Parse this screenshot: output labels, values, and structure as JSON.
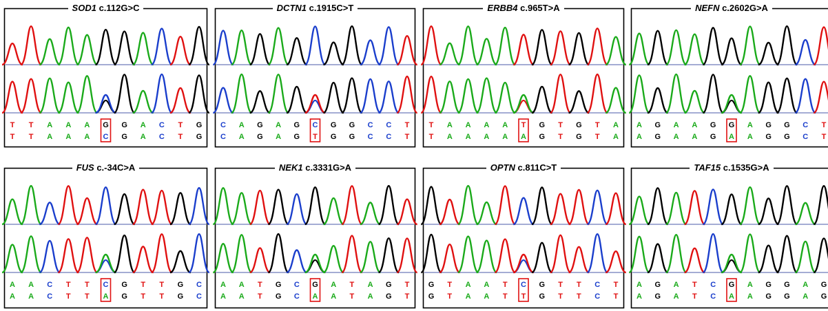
{
  "colors": {
    "A": "#1aaa1a",
    "C": "#1a3ecc",
    "G": "#000000",
    "T": "#e01010",
    "box": "#e01010",
    "frame": "#000000"
  },
  "panels": [
    {
      "gene": "SOD1",
      "variant": "c.112G>C",
      "wt": [
        "T",
        "T",
        "A",
        "A",
        "A",
        "G",
        "G",
        "A",
        "C",
        "T",
        "G"
      ],
      "mut": [
        "T",
        "T",
        "A",
        "A",
        "A",
        "C",
        "G",
        "A",
        "C",
        "T",
        "G"
      ],
      "site": 5
    },
    {
      "gene": "DCTN1",
      "variant": "c.1915C>T",
      "wt": [
        "C",
        "A",
        "G",
        "A",
        "G",
        "C",
        "G",
        "G",
        "C",
        "C",
        "T"
      ],
      "mut": [
        "C",
        "A",
        "G",
        "A",
        "G",
        "T",
        "G",
        "G",
        "C",
        "C",
        "T"
      ],
      "site": 5
    },
    {
      "gene": "ERBB4",
      "variant": "c.965T>A",
      "wt": [
        "T",
        "A",
        "A",
        "A",
        "A",
        "T",
        "G",
        "T",
        "G",
        "T",
        "A"
      ],
      "mut": [
        "T",
        "A",
        "A",
        "A",
        "A",
        "A",
        "G",
        "T",
        "G",
        "T",
        "A"
      ],
      "site": 5
    },
    {
      "gene": "NEFN",
      "variant": "c.2602G>A",
      "wt": [
        "A",
        "G",
        "A",
        "A",
        "G",
        "G",
        "A",
        "G",
        "G",
        "C",
        "T"
      ],
      "mut": [
        "A",
        "G",
        "A",
        "A",
        "G",
        "A",
        "A",
        "G",
        "G",
        "C",
        "T"
      ],
      "site": 5
    },
    {
      "gene": "FUS",
      "variant": "c.-34C>A",
      "wt": [
        "A",
        "A",
        "C",
        "T",
        "T",
        "C",
        "G",
        "T",
        "T",
        "G",
        "C"
      ],
      "mut": [
        "A",
        "A",
        "C",
        "T",
        "T",
        "A",
        "G",
        "T",
        "T",
        "G",
        "C"
      ],
      "site": 5
    },
    {
      "gene": "NEK1",
      "variant": "c.3331G>A",
      "wt": [
        "A",
        "A",
        "T",
        "G",
        "C",
        "G",
        "A",
        "T",
        "A",
        "G",
        "T"
      ],
      "mut": [
        "A",
        "A",
        "T",
        "G",
        "C",
        "A",
        "A",
        "T",
        "A",
        "G",
        "T"
      ],
      "site": 5
    },
    {
      "gene": "OPTN",
      "variant": "c.811C>T",
      "wt": [
        "G",
        "T",
        "A",
        "A",
        "T",
        "C",
        "G",
        "T",
        "T",
        "C",
        "T"
      ],
      "mut": [
        "G",
        "T",
        "A",
        "A",
        "T",
        "T",
        "G",
        "T",
        "T",
        "C",
        "T"
      ],
      "site": 5
    },
    {
      "gene": "TAF15",
      "variant": "c.1535G>A",
      "wt": [
        "A",
        "G",
        "A",
        "T",
        "C",
        "G",
        "A",
        "G",
        "G",
        "A",
        "G"
      ],
      "mut": [
        "A",
        "G",
        "A",
        "T",
        "C",
        "A",
        "A",
        "G",
        "G",
        "A",
        "G"
      ],
      "site": 5
    }
  ]
}
